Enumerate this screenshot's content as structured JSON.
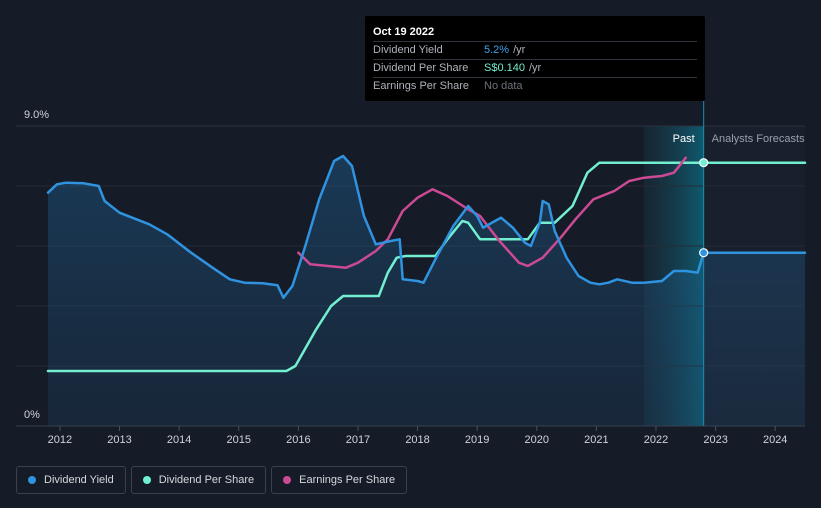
{
  "tooltip": {
    "date": "Oct 19 2022",
    "rows": [
      {
        "label": "Dividend Yield",
        "value": "5.2%",
        "unit": "/yr"
      },
      {
        "label": "Dividend Per Share",
        "value": "S$0.140",
        "unit": "/yr"
      },
      {
        "label": "Earnings Per Share",
        "value": "No data"
      }
    ]
  },
  "legend": [
    {
      "label": "Dividend Yield",
      "color": "#2f93e0"
    },
    {
      "label": "Dividend Per Share",
      "color": "#72efd0"
    },
    {
      "label": "Earnings Per Share",
      "color": "#cc4a94"
    }
  ],
  "chart_data": {
    "type": "line",
    "title": "",
    "ylabel_top": "9.0%",
    "ylabel_bottom": "0%",
    "ylim": [
      0,
      9.0
    ],
    "xlim": [
      2011.8,
      2024.5
    ],
    "x_ticks": [
      "2012",
      "2013",
      "2014",
      "2015",
      "2016",
      "2017",
      "2018",
      "2019",
      "2020",
      "2021",
      "2022",
      "2023",
      "2024"
    ],
    "regions": {
      "past_label": "Past",
      "forecast_label": "Analysts Forecasts",
      "past_start": 2021.8,
      "divider": 2022.8
    },
    "marker_x": 2022.8,
    "series": [
      {
        "name": "Dividend Yield",
        "color": "#2f93e0",
        "values": [
          [
            2011.8,
            7.0
          ],
          [
            2011.95,
            7.25
          ],
          [
            2012.1,
            7.3
          ],
          [
            2012.4,
            7.28
          ],
          [
            2012.65,
            7.2
          ],
          [
            2012.75,
            6.75
          ],
          [
            2013.0,
            6.4
          ],
          [
            2013.5,
            6.05
          ],
          [
            2013.8,
            5.75
          ],
          [
            2014.2,
            5.2
          ],
          [
            2014.6,
            4.7
          ],
          [
            2014.85,
            4.4
          ],
          [
            2015.1,
            4.3
          ],
          [
            2015.4,
            4.28
          ],
          [
            2015.65,
            4.22
          ],
          [
            2015.75,
            3.85
          ],
          [
            2015.9,
            4.2
          ],
          [
            2016.1,
            5.3
          ],
          [
            2016.35,
            6.8
          ],
          [
            2016.6,
            7.95
          ],
          [
            2016.75,
            8.1
          ],
          [
            2016.9,
            7.8
          ],
          [
            2017.1,
            6.3
          ],
          [
            2017.3,
            5.45
          ],
          [
            2017.55,
            5.55
          ],
          [
            2017.7,
            5.6
          ],
          [
            2017.75,
            4.4
          ],
          [
            2018.0,
            4.35
          ],
          [
            2018.1,
            4.3
          ],
          [
            2018.3,
            5.0
          ],
          [
            2018.6,
            6.0
          ],
          [
            2018.85,
            6.6
          ],
          [
            2019.0,
            6.3
          ],
          [
            2019.1,
            5.95
          ],
          [
            2019.3,
            6.15
          ],
          [
            2019.4,
            6.25
          ],
          [
            2019.6,
            5.95
          ],
          [
            2019.8,
            5.5
          ],
          [
            2019.9,
            5.4
          ],
          [
            2020.05,
            6.1
          ],
          [
            2020.1,
            6.75
          ],
          [
            2020.2,
            6.65
          ],
          [
            2020.3,
            5.85
          ],
          [
            2020.5,
            5.05
          ],
          [
            2020.7,
            4.5
          ],
          [
            2020.9,
            4.3
          ],
          [
            2021.05,
            4.25
          ],
          [
            2021.2,
            4.3
          ],
          [
            2021.35,
            4.4
          ],
          [
            2021.6,
            4.3
          ],
          [
            2021.8,
            4.3
          ],
          [
            2022.1,
            4.35
          ],
          [
            2022.3,
            4.65
          ],
          [
            2022.5,
            4.65
          ],
          [
            2022.7,
            4.6
          ],
          [
            2022.8,
            5.2
          ],
          [
            2024.5,
            5.2
          ]
        ]
      },
      {
        "name": "Dividend Per Share",
        "color": "#72efd0",
        "values": [
          [
            2011.8,
            1.65
          ],
          [
            2015.5,
            1.65
          ],
          [
            2015.8,
            1.65
          ],
          [
            2015.95,
            1.8
          ],
          [
            2016.3,
            2.9
          ],
          [
            2016.55,
            3.6
          ],
          [
            2016.75,
            3.9
          ],
          [
            2017.35,
            3.9
          ],
          [
            2017.5,
            4.6
          ],
          [
            2017.65,
            5.05
          ],
          [
            2017.8,
            5.1
          ],
          [
            2018.3,
            5.1
          ],
          [
            2018.5,
            5.6
          ],
          [
            2018.75,
            6.15
          ],
          [
            2018.85,
            6.1
          ],
          [
            2019.05,
            5.6
          ],
          [
            2019.4,
            5.6
          ],
          [
            2019.85,
            5.6
          ],
          [
            2020.05,
            6.1
          ],
          [
            2020.3,
            6.1
          ],
          [
            2020.6,
            6.6
          ],
          [
            2020.85,
            7.6
          ],
          [
            2021.05,
            7.9
          ],
          [
            2021.5,
            7.9
          ],
          [
            2022.8,
            7.9
          ],
          [
            2024.5,
            7.9
          ]
        ]
      },
      {
        "name": "Earnings Per Share",
        "color": "#cc4a94",
        "values": [
          [
            2016.0,
            5.2
          ],
          [
            2016.2,
            4.85
          ],
          [
            2016.5,
            4.8
          ],
          [
            2016.8,
            4.75
          ],
          [
            2017.0,
            4.9
          ],
          [
            2017.3,
            5.25
          ],
          [
            2017.5,
            5.6
          ],
          [
            2017.75,
            6.45
          ],
          [
            2018.0,
            6.85
          ],
          [
            2018.25,
            7.1
          ],
          [
            2018.5,
            6.9
          ],
          [
            2018.85,
            6.5
          ],
          [
            2019.05,
            6.3
          ],
          [
            2019.35,
            5.6
          ],
          [
            2019.7,
            4.9
          ],
          [
            2019.85,
            4.8
          ],
          [
            2020.1,
            5.05
          ],
          [
            2020.4,
            5.65
          ],
          [
            2020.65,
            6.2
          ],
          [
            2020.95,
            6.8
          ],
          [
            2021.3,
            7.05
          ],
          [
            2021.55,
            7.35
          ],
          [
            2021.8,
            7.45
          ],
          [
            2022.1,
            7.5
          ],
          [
            2022.3,
            7.6
          ],
          [
            2022.5,
            8.05
          ]
        ]
      }
    ],
    "markers": [
      {
        "series": "Dividend Per Share",
        "x": 2022.8,
        "y": 7.9
      },
      {
        "series": "Dividend Yield",
        "x": 2022.8,
        "y": 5.2
      }
    ]
  }
}
